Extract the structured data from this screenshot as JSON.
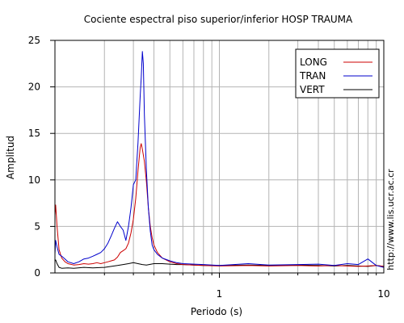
{
  "chart_data": {
    "type": "line",
    "title": "Cociente espectral piso superior/inferior  HOSP TRAUMA",
    "xlabel": "Periodo (s)",
    "ylabel": "Amplitud",
    "x_scale": "log",
    "xlim": [
      0.1,
      10
    ],
    "ylim": [
      0,
      25
    ],
    "x_tick_labels": [
      {
        "value": 1,
        "label": "1"
      },
      {
        "value": 10,
        "label": "10"
      }
    ],
    "y_ticks": [
      0,
      5,
      10,
      15,
      20,
      25
    ],
    "grid": true,
    "legend_position": "top-right",
    "series": [
      {
        "name": "LONG",
        "color": "#cc0000",
        "points": [
          [
            0.1,
            6.2
          ],
          [
            0.101,
            7.3
          ],
          [
            0.103,
            5.0
          ],
          [
            0.106,
            2.5
          ],
          [
            0.11,
            1.6
          ],
          [
            0.115,
            1.2
          ],
          [
            0.12,
            1.0
          ],
          [
            0.13,
            0.85
          ],
          [
            0.14,
            0.9
          ],
          [
            0.15,
            1.0
          ],
          [
            0.16,
            0.95
          ],
          [
            0.17,
            1.0
          ],
          [
            0.18,
            1.1
          ],
          [
            0.19,
            1.0
          ],
          [
            0.2,
            1.1
          ],
          [
            0.21,
            1.2
          ],
          [
            0.22,
            1.3
          ],
          [
            0.23,
            1.4
          ],
          [
            0.24,
            1.7
          ],
          [
            0.25,
            2.2
          ],
          [
            0.26,
            2.4
          ],
          [
            0.27,
            2.6
          ],
          [
            0.28,
            3.2
          ],
          [
            0.29,
            4.3
          ],
          [
            0.3,
            5.8
          ],
          [
            0.31,
            8.0
          ],
          [
            0.32,
            11.0
          ],
          [
            0.33,
            13.5
          ],
          [
            0.335,
            13.9
          ],
          [
            0.34,
            13.3
          ],
          [
            0.35,
            12.0
          ],
          [
            0.36,
            9.8
          ],
          [
            0.37,
            7.0
          ],
          [
            0.38,
            5.0
          ],
          [
            0.39,
            3.8
          ],
          [
            0.4,
            3.0
          ],
          [
            0.42,
            2.2
          ],
          [
            0.45,
            1.6
          ],
          [
            0.5,
            1.2
          ],
          [
            0.55,
            1.0
          ],
          [
            0.6,
            0.9
          ],
          [
            0.7,
            0.85
          ],
          [
            0.8,
            0.8
          ],
          [
            1.0,
            0.75
          ],
          [
            1.5,
            0.8
          ],
          [
            2.0,
            0.75
          ],
          [
            3.0,
            0.8
          ],
          [
            4.0,
            0.75
          ],
          [
            5.0,
            0.8
          ],
          [
            6.0,
            0.75
          ],
          [
            7.0,
            0.7
          ],
          [
            8.0,
            0.75
          ],
          [
            9.0,
            0.8
          ],
          [
            10.0,
            0.7
          ]
        ]
      },
      {
        "name": "TRAN",
        "color": "#0000cc",
        "points": [
          [
            0.1,
            2.0
          ],
          [
            0.101,
            3.5
          ],
          [
            0.103,
            2.8
          ],
          [
            0.106,
            2.0
          ],
          [
            0.11,
            1.8
          ],
          [
            0.115,
            1.5
          ],
          [
            0.12,
            1.2
          ],
          [
            0.13,
            1.0
          ],
          [
            0.14,
            1.2
          ],
          [
            0.15,
            1.5
          ],
          [
            0.16,
            1.6
          ],
          [
            0.17,
            1.8
          ],
          [
            0.18,
            2.0
          ],
          [
            0.19,
            2.2
          ],
          [
            0.2,
            2.6
          ],
          [
            0.21,
            3.2
          ],
          [
            0.22,
            4.0
          ],
          [
            0.23,
            4.8
          ],
          [
            0.24,
            5.5
          ],
          [
            0.25,
            5.0
          ],
          [
            0.26,
            4.6
          ],
          [
            0.27,
            3.5
          ],
          [
            0.28,
            5.0
          ],
          [
            0.29,
            7.0
          ],
          [
            0.3,
            9.5
          ],
          [
            0.31,
            10.0
          ],
          [
            0.32,
            14.0
          ],
          [
            0.33,
            19.0
          ],
          [
            0.335,
            21.0
          ],
          [
            0.34,
            23.8
          ],
          [
            0.345,
            22.5
          ],
          [
            0.35,
            17.0
          ],
          [
            0.36,
            11.0
          ],
          [
            0.37,
            7.0
          ],
          [
            0.38,
            4.5
          ],
          [
            0.39,
            3.0
          ],
          [
            0.4,
            2.5
          ],
          [
            0.42,
            2.0
          ],
          [
            0.45,
            1.6
          ],
          [
            0.5,
            1.3
          ],
          [
            0.55,
            1.1
          ],
          [
            0.6,
            1.0
          ],
          [
            0.7,
            0.95
          ],
          [
            0.8,
            0.9
          ],
          [
            1.0,
            0.8
          ],
          [
            1.5,
            1.0
          ],
          [
            2.0,
            0.85
          ],
          [
            3.0,
            0.9
          ],
          [
            4.0,
            0.95
          ],
          [
            5.0,
            0.8
          ],
          [
            6.0,
            1.0
          ],
          [
            7.0,
            0.9
          ],
          [
            8.0,
            1.5
          ],
          [
            9.0,
            0.8
          ],
          [
            10.0,
            0.6
          ]
        ]
      },
      {
        "name": "VERT",
        "color": "#000000",
        "points": [
          [
            0.1,
            1.3
          ],
          [
            0.101,
            1.4
          ],
          [
            0.103,
            1.0
          ],
          [
            0.106,
            0.6
          ],
          [
            0.11,
            0.5
          ],
          [
            0.12,
            0.55
          ],
          [
            0.13,
            0.5
          ],
          [
            0.15,
            0.6
          ],
          [
            0.17,
            0.55
          ],
          [
            0.2,
            0.6
          ],
          [
            0.22,
            0.7
          ],
          [
            0.24,
            0.8
          ],
          [
            0.26,
            0.9
          ],
          [
            0.28,
            1.0
          ],
          [
            0.3,
            1.1
          ],
          [
            0.32,
            1.0
          ],
          [
            0.34,
            0.9
          ],
          [
            0.36,
            0.85
          ],
          [
            0.4,
            1.0
          ],
          [
            0.45,
            1.0
          ],
          [
            0.5,
            0.95
          ],
          [
            0.55,
            0.9
          ],
          [
            0.6,
            0.9
          ],
          [
            0.7,
            0.85
          ],
          [
            0.8,
            0.8
          ],
          [
            1.0,
            0.8
          ],
          [
            1.5,
            0.85
          ],
          [
            2.0,
            0.8
          ],
          [
            3.0,
            0.85
          ],
          [
            4.0,
            0.8
          ],
          [
            5.0,
            0.75
          ],
          [
            6.0,
            0.8
          ],
          [
            7.0,
            0.75
          ],
          [
            8.0,
            0.7
          ],
          [
            9.0,
            0.8
          ],
          [
            10.0,
            0.7
          ]
        ]
      }
    ]
  },
  "watermark_url": "http://www.lis.ucr.ac.cr"
}
